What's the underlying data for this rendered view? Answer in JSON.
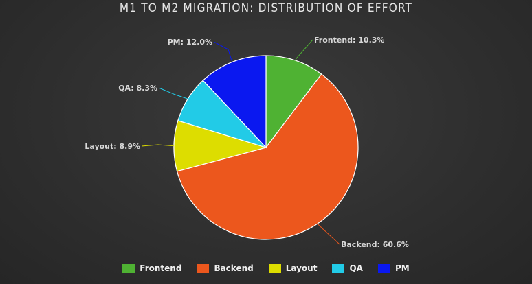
{
  "chart_data": {
    "type": "pie",
    "title": "M1 TO M2 MIGRATION: DISTRIBUTION OF EFFORT",
    "categories": [
      "Frontend",
      "Backend",
      "Layout",
      "QA",
      "PM"
    ],
    "values": [
      10.3,
      60.6,
      8.9,
      8.3,
      12.0
    ],
    "labels": [
      "Frontend: 10.3%",
      "Backend: 60.6%",
      "Layout: 8.9%",
      "QA: 8.3%",
      "PM: 12.0%"
    ],
    "colors": [
      "#4fb233",
      "#ec571d",
      "#dddd00",
      "#22cbe7",
      "#0a18f0"
    ],
    "legend_position": "bottom"
  },
  "legend": [
    {
      "label": "Frontend",
      "color": "#4fb233"
    },
    {
      "label": "Backend",
      "color": "#ec571d"
    },
    {
      "label": "Layout",
      "color": "#dddd00"
    },
    {
      "label": "QA",
      "color": "#22cbe7"
    },
    {
      "label": "PM",
      "color": "#0a18f0"
    }
  ]
}
